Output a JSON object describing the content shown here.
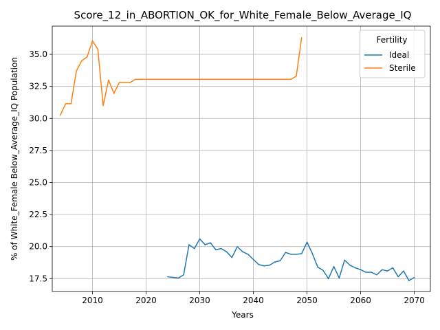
{
  "chart_data": {
    "type": "line",
    "title": "Score_12_in_ABORTION_OK_for_White_Female_Below_Average_IQ",
    "xlabel": "Years",
    "ylabel": "% of White_Female Below_Average_IQ Population",
    "xlim": [
      2002.5,
      2073.0
    ],
    "ylim": [
      16.5,
      37.2
    ],
    "xticks": [
      2010,
      2020,
      2030,
      2040,
      2050,
      2060,
      2070
    ],
    "yticks": [
      17.5,
      20.0,
      22.5,
      25.0,
      27.5,
      30.0,
      32.5,
      35.0
    ],
    "ytick_labels": [
      "17.5",
      "20.0",
      "22.5",
      "25.0",
      "27.5",
      "30.0",
      "32.5",
      "35.0"
    ],
    "grid": true,
    "legend": {
      "title": "Fertility",
      "placement": "top-right"
    },
    "series": [
      {
        "name": "Ideal",
        "color": "#1f77b4",
        "x": [
          2024,
          2025,
          2026,
          2027,
          2028,
          2029,
          2030,
          2031,
          2032,
          2033,
          2034,
          2035,
          2036,
          2037,
          2038,
          2039,
          2040,
          2041,
          2042,
          2043,
          2044,
          2045,
          2046,
          2047,
          2048,
          2049,
          2050,
          2051,
          2052,
          2053,
          2054,
          2055,
          2056,
          2057,
          2058,
          2059,
          2060,
          2061,
          2062,
          2063,
          2064,
          2065,
          2066,
          2067,
          2068,
          2069,
          2070
        ],
        "values": [
          17.65,
          17.6,
          17.55,
          17.8,
          20.15,
          19.85,
          20.6,
          20.15,
          20.3,
          19.75,
          19.85,
          19.6,
          19.15,
          20.0,
          19.6,
          19.4,
          19.0,
          18.6,
          18.5,
          18.55,
          18.8,
          18.9,
          19.55,
          19.4,
          19.4,
          19.45,
          20.35,
          19.45,
          18.4,
          18.15,
          17.5,
          18.45,
          17.55,
          18.95,
          18.55,
          18.35,
          18.2,
          18.0,
          18.0,
          17.8,
          18.2,
          18.1,
          18.35,
          17.65,
          18.1,
          17.35,
          17.6
        ]
      },
      {
        "name": "Sterile",
        "color": "#ff7f0e",
        "x": [
          2004,
          2005,
          2006,
          2007,
          2008,
          2009,
          2010,
          2011,
          2012,
          2013,
          2014,
          2015,
          2016,
          2017,
          2018,
          2019,
          2020,
          2021,
          2022,
          2023,
          2024,
          2025,
          2026,
          2027,
          2028,
          2029,
          2030,
          2031,
          2032,
          2033,
          2034,
          2035,
          2036,
          2037,
          2038,
          2039,
          2040,
          2041,
          2042,
          2043,
          2044,
          2045,
          2046,
          2047,
          2048,
          2049
        ],
        "values": [
          30.25,
          31.15,
          31.15,
          33.7,
          34.5,
          34.8,
          36.05,
          35.4,
          31.0,
          33.0,
          31.95,
          32.8,
          32.8,
          32.8,
          33.05,
          33.05,
          33.05,
          33.05,
          33.05,
          33.05,
          33.05,
          33.05,
          33.05,
          33.05,
          33.05,
          33.05,
          33.05,
          33.05,
          33.05,
          33.05,
          33.05,
          33.05,
          33.05,
          33.05,
          33.05,
          33.05,
          33.05,
          33.05,
          33.05,
          33.05,
          33.05,
          33.05,
          33.05,
          33.05,
          33.3,
          36.3
        ]
      }
    ]
  }
}
